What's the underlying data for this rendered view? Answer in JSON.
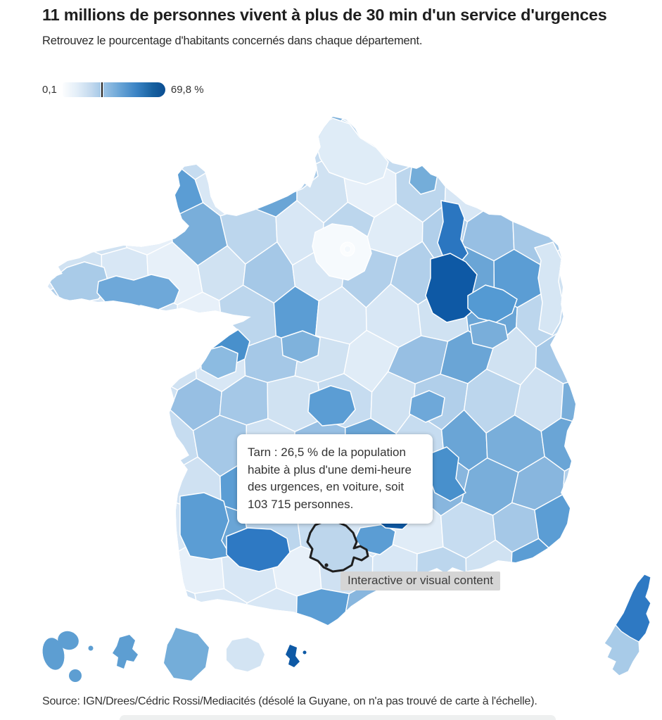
{
  "header": {
    "title": "11 millions de personnes vivent à plus de 30 min d'un service d'urgences",
    "subtitle": "Retrouvez le pourcentage d'habitants concernés dans chaque département."
  },
  "legend": {
    "min_label": "0,1",
    "max_label": "69,8 %",
    "tick_percent": 37
  },
  "map": {
    "tooltip": {
      "department": "Tarn",
      "percent": "26,5 %",
      "population": "103 715",
      "text": "Tarn : 26,5 % de la population habite à plus d'une demi-heure des urgences, en voiture, soit 103 715 personnes."
    },
    "overlay_label": "Interactive or visual content",
    "highlight_department": "Tarn",
    "colors": {
      "base": "#cfe1f2",
      "border": "#ffffff",
      "pale": "#f6fafd",
      "light": "#d6e6f4",
      "medium": "#5b9dd4",
      "medium_dark": "#2e79c3",
      "navy": "#0e59a5",
      "tarn_fill": "#bdd6ec",
      "hover_outline": "#1f1f1f"
    },
    "palette": [
      "#e7f0f9",
      "#e0ecf7",
      "#d8e7f5",
      "#d0e2f2",
      "#c6dcf0",
      "#bcd6ed",
      "#b1cfea",
      "#a5c8e7",
      "#d8e7f5",
      "#cfe1f2",
      "#97bfe3",
      "#88b6de",
      "#79aeda",
      "#6aa5d6",
      "#c6dcf0",
      "#bcd6ed",
      "#5b9dd4",
      "#d0e2f2"
    ]
  },
  "source": {
    "text": "Source: IGN/Drees/Cédric Rossi/Mediacités (désolé la Guyane, on n'a pas trouvé de carte à l'échelle)."
  }
}
